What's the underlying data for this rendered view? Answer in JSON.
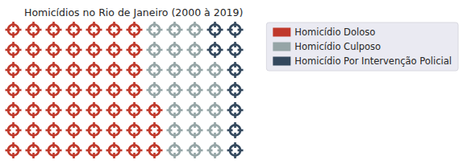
{
  "chart_data": {
    "type": "waffle",
    "title": "Homicídios no Rio de Janeiro (2000 à 2019)",
    "series": [
      {
        "name": "Homicídio Doloso",
        "color": "#c0392b",
        "value": 52
      },
      {
        "name": "Homicídio Culposo",
        "color": "#95a5a6",
        "value": 23
      },
      {
        "name": "Homicídio Por Intervenção Policial",
        "color": "#34495e",
        "value": 9
      }
    ],
    "legend": "upper right"
  }
}
